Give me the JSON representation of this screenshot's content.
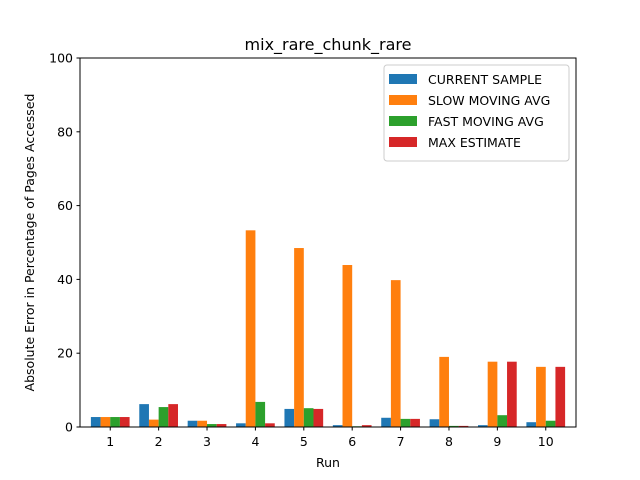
{
  "chart_data": {
    "type": "bar",
    "title": "mix_rare_chunk_rare",
    "xlabel": "Run",
    "ylabel": "Absolute Error in Percentage of Pages Accessed",
    "ylim": [
      0,
      100
    ],
    "yticks": [
      0,
      20,
      40,
      60,
      80,
      100
    ],
    "categories": [
      "1",
      "2",
      "3",
      "4",
      "5",
      "6",
      "7",
      "8",
      "9",
      "10"
    ],
    "legend_position": "top-right",
    "grid": false,
    "series": [
      {
        "name": "CURRENT SAMPLE",
        "color": "#1f77b4",
        "values": [
          2.7,
          6.2,
          1.7,
          1.0,
          4.9,
          0.5,
          2.5,
          2.1,
          0.5,
          1.3
        ]
      },
      {
        "name": "SLOW MOVING AVG",
        "color": "#ff7f0e",
        "values": [
          2.7,
          2.0,
          1.7,
          53.3,
          48.5,
          43.9,
          39.8,
          19.0,
          17.7,
          16.3
        ]
      },
      {
        "name": "FAST MOVING AVG",
        "color": "#2ca02c",
        "values": [
          2.7,
          5.4,
          0.8,
          6.8,
          5.1,
          0.2,
          2.2,
          0.3,
          3.2,
          1.7
        ]
      },
      {
        "name": "MAX ESTIMATE",
        "color": "#d62728",
        "values": [
          2.7,
          6.2,
          0.8,
          1.0,
          4.9,
          0.5,
          2.2,
          0.3,
          17.7,
          16.3
        ]
      }
    ]
  }
}
